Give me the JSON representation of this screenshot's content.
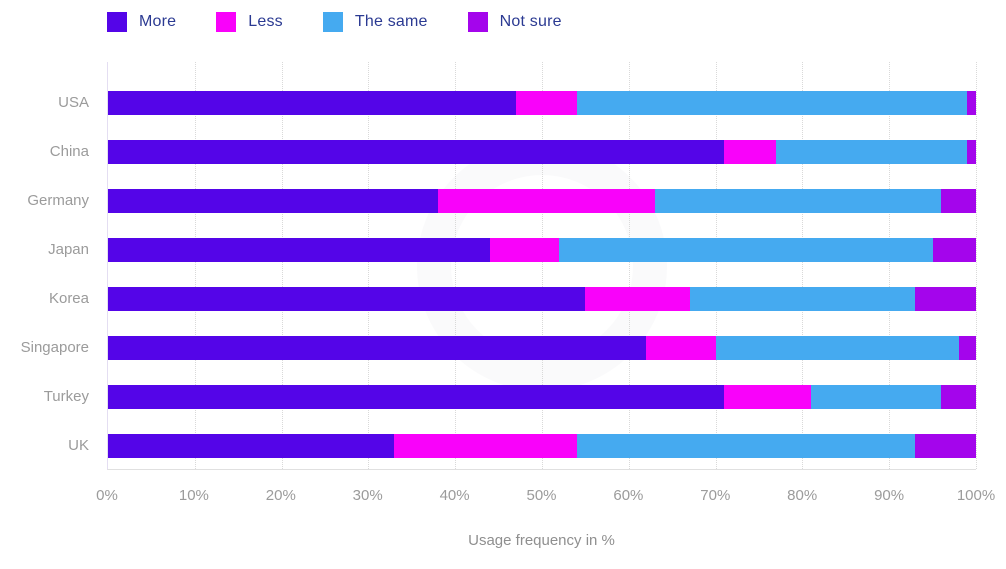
{
  "legend": {
    "items": [
      {
        "label": "More",
        "color": "#5405e8"
      },
      {
        "label": "Less",
        "color": "#f902fa"
      },
      {
        "label": "The same",
        "color": "#45aaf0"
      },
      {
        "label": "Not sure",
        "color": "#a405ec"
      }
    ]
  },
  "chart_data": {
    "type": "bar",
    "orientation": "horizontal",
    "stacked": true,
    "units": "percent",
    "categories": [
      "USA",
      "China",
      "Germany",
      "Japan",
      "Korea",
      "Singapore",
      "Turkey",
      "UK"
    ],
    "series": [
      {
        "name": "More",
        "color": "#5405e8",
        "values": [
          47,
          71,
          38,
          44,
          55,
          62,
          71,
          33
        ]
      },
      {
        "name": "Less",
        "color": "#f902fa",
        "values": [
          7,
          6,
          25,
          8,
          12,
          8,
          10,
          21
        ]
      },
      {
        "name": "The same",
        "color": "#45aaf0",
        "values": [
          45,
          22,
          33,
          43,
          26,
          28,
          15,
          39
        ]
      },
      {
        "name": "Not sure",
        "color": "#a405ec",
        "values": [
          1,
          1,
          4,
          5,
          7,
          2,
          4,
          7
        ]
      }
    ],
    "xlabel": "Usage frequency in %",
    "x_ticks": [
      "0%",
      "10%",
      "20%",
      "30%",
      "40%",
      "50%",
      "60%",
      "70%",
      "80%",
      "90%",
      "100%"
    ],
    "xlim": [
      0,
      100
    ],
    "grid": "vertical-dotted",
    "legend_position": "top-left"
  }
}
